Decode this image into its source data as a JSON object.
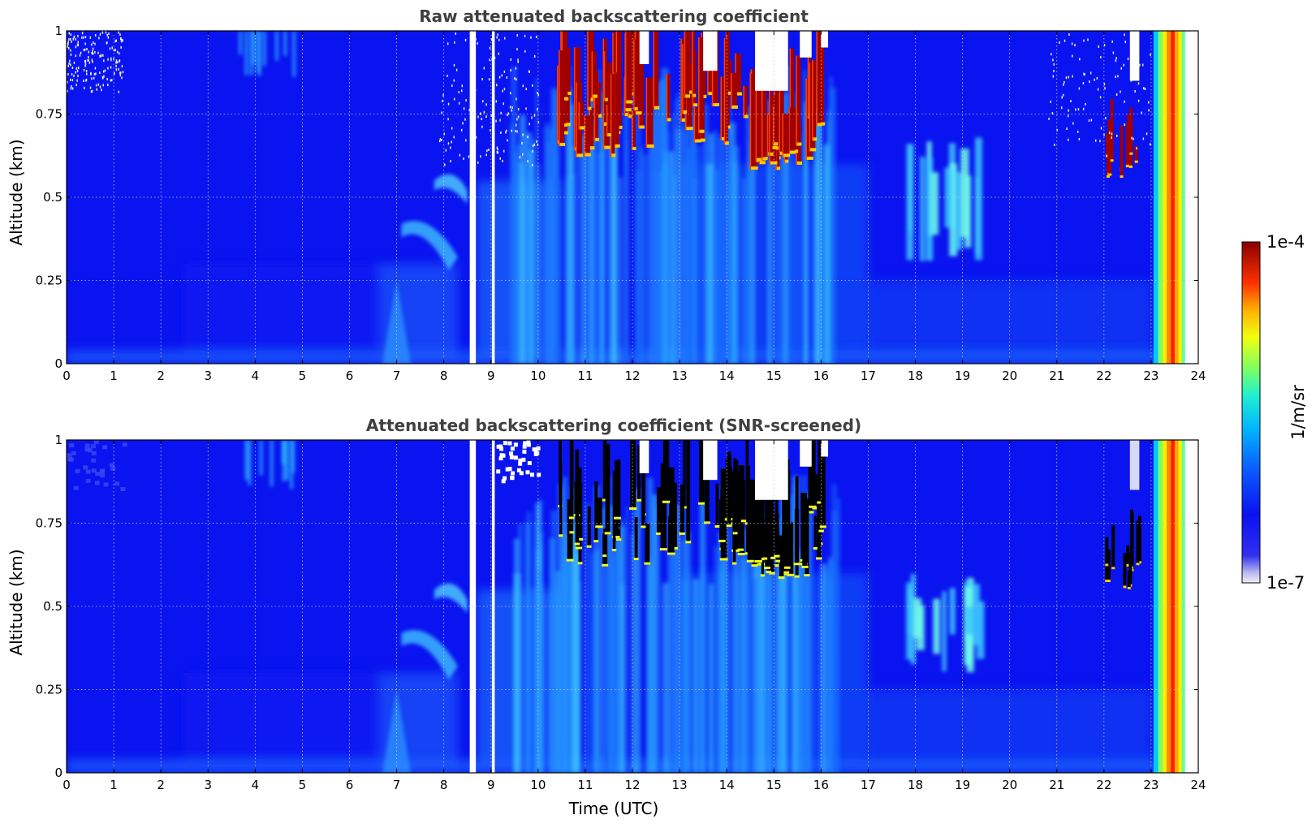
{
  "chart_data": [
    {
      "type": "heatmap",
      "title": "Raw attenuated backscattering coefficient",
      "xlabel": "",
      "ylabel": "Altitude (km)",
      "xlim": [
        0,
        24
      ],
      "ylim": [
        0,
        1
      ],
      "x_ticks": [
        "0",
        "1",
        "2",
        "3",
        "4",
        "5",
        "6",
        "7",
        "8",
        "9",
        "10",
        "11",
        "12",
        "13",
        "14",
        "15",
        "16",
        "17",
        "18",
        "19",
        "20",
        "21",
        "22",
        "23",
        "24"
      ],
      "y_ticks": [
        "0",
        "0.25",
        "0.5",
        "0.75",
        "1"
      ],
      "grid": true,
      "x_unit": "hours UTC",
      "y_unit": "km",
      "missing_data_intervals": [
        [
          8.55,
          8.68
        ],
        [
          9.02,
          9.08
        ]
      ],
      "features": [
        {
          "kind": "low cloud / high backscatter",
          "x_range": [
            10.4,
            16.0
          ],
          "y_range": [
            0.55,
            1.0
          ],
          "level": "high"
        },
        {
          "kind": "enhanced backscatter layer",
          "x_range": [
            17.7,
            19.3
          ],
          "y_range": [
            0.3,
            0.68
          ],
          "level": "moderate"
        },
        {
          "kind": "cloud base",
          "x_range": [
            22.0,
            22.7
          ],
          "y_range": [
            0.55,
            0.78
          ],
          "level": "high"
        },
        {
          "kind": "precipitation / saturated column",
          "x_range": [
            23.05,
            23.7
          ],
          "y_range": [
            0,
            1.0
          ],
          "level": "very high"
        }
      ]
    },
    {
      "type": "heatmap",
      "title": "Attenuated backscattering coefficient (SNR-screened)",
      "xlabel": "Time (UTC)",
      "ylabel": "Altitude (km)",
      "xlim": [
        0,
        24
      ],
      "ylim": [
        0,
        1
      ],
      "x_ticks": [
        "0",
        "1",
        "2",
        "3",
        "4",
        "5",
        "6",
        "7",
        "8",
        "9",
        "10",
        "11",
        "12",
        "13",
        "14",
        "15",
        "16",
        "17",
        "18",
        "19",
        "20",
        "21",
        "22",
        "23",
        "24"
      ],
      "y_ticks": [
        "0",
        "0.25",
        "0.5",
        "0.75",
        "1"
      ],
      "grid": true,
      "x_unit": "hours UTC",
      "y_unit": "km",
      "missing_data_intervals": [
        [
          8.55,
          8.68
        ],
        [
          9.02,
          9.08
        ]
      ],
      "features": [
        {
          "kind": "screened-out signal above cloud (black)",
          "x_range": [
            10.4,
            16.0
          ],
          "y_range": [
            0.57,
            0.9
          ],
          "level": "masked"
        },
        {
          "kind": "enhanced backscatter layer",
          "x_range": [
            17.7,
            19.3
          ],
          "y_range": [
            0.3,
            0.6
          ],
          "level": "moderate"
        },
        {
          "kind": "screened-out signal (black)",
          "x_range": [
            22.0,
            22.8
          ],
          "y_range": [
            0.55,
            0.8
          ],
          "level": "masked"
        },
        {
          "kind": "precipitation / saturated column",
          "x_range": [
            23.05,
            23.7
          ],
          "y_range": [
            0,
            1.0
          ],
          "level": "very high"
        }
      ]
    }
  ],
  "colorbar": {
    "max_label": "1e-4",
    "min_label": "1e-7",
    "unit": "1/m/sr",
    "scale": "log",
    "colormap": "jet",
    "colors": [
      "#e8e8f8",
      "#0a12f0",
      "#0a5aff",
      "#00c8ff",
      "#30f0c0",
      "#b0ff40",
      "#ffee00",
      "#ff8800",
      "#ff2000",
      "#900000"
    ]
  }
}
